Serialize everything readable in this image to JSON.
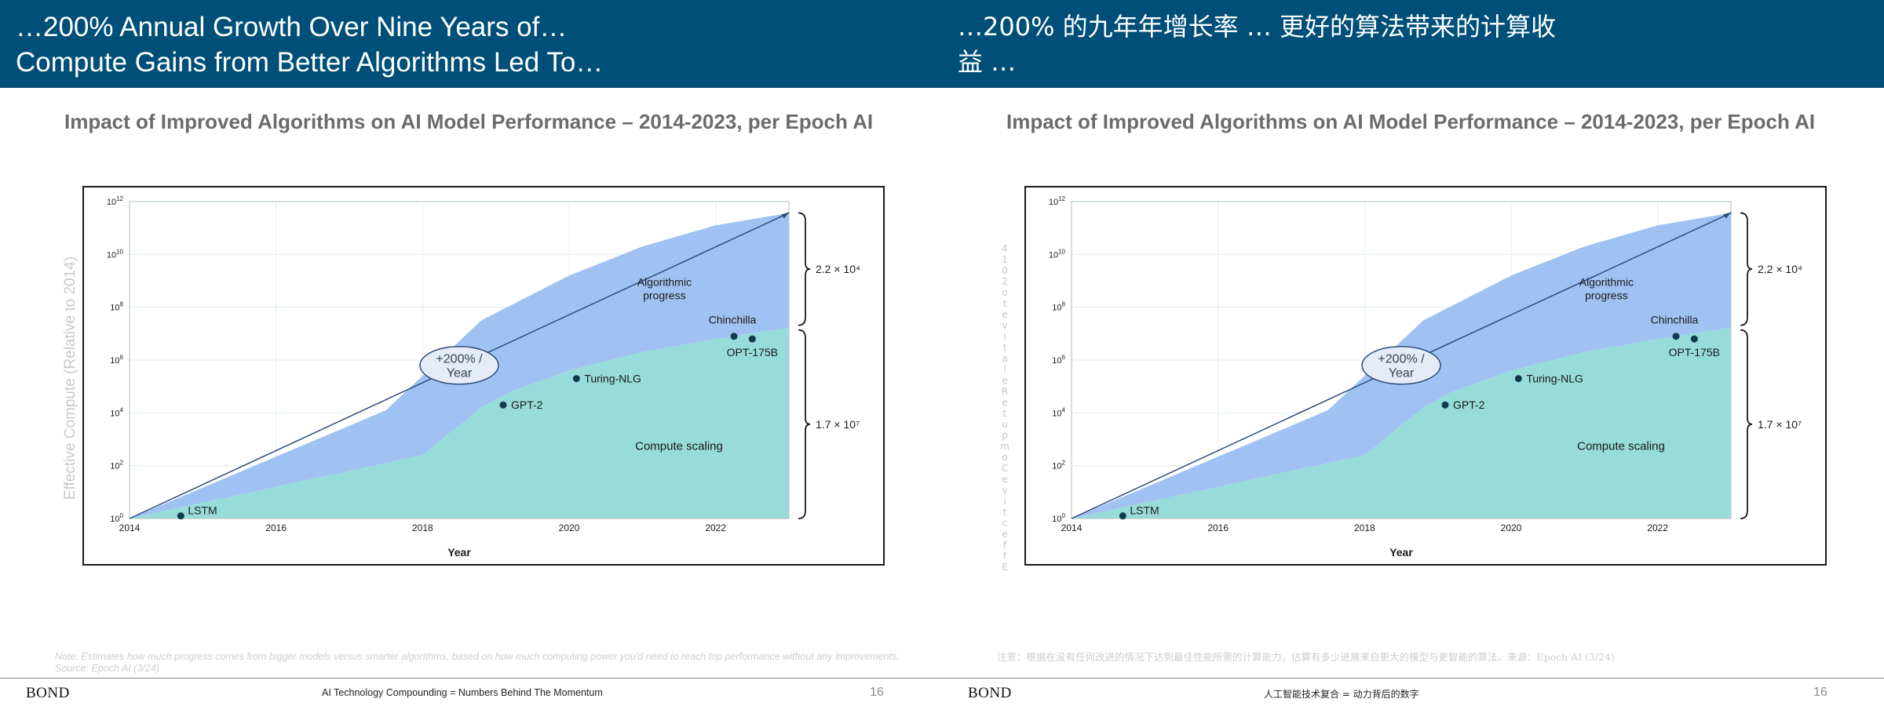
{
  "header": {
    "title_en_line1": "…200% Annual Growth Over Nine Years of…",
    "title_en_line2": "Compute Gains from Better Algorithms Led To…",
    "title_cn_line1": "…200% 的九年年增长率 … 更好的算法带来的计算收",
    "title_cn_line2": "益 …",
    "color": "#004f78"
  },
  "chart_heading_en": "Impact of Improved Algorithms on AI Model Performance – 2014-2023, per Epoch AI",
  "chart_heading_cn": "Impact of Improved Algorithms on AI Model Performance – 2014-2023, per Epoch AI",
  "ylabel_en": "Effective Compute (Relative to 2014)",
  "ylabel_cn_chars": [
    "4",
    "1",
    "0",
    "2",
    "o",
    "t",
    "e",
    "v",
    "i",
    "t",
    "a",
    "l",
    "e",
    "R",
    "e",
    "t",
    "u",
    "p",
    "m",
    "o",
    "C",
    "e",
    "v",
    "i",
    "t",
    "c",
    "e",
    "f",
    "f",
    "E"
  ],
  "note_en": "Note: Estimates how much progress comes from bigger models versus smarter algorithms, based on how much computing power you'd need to reach top performance without any improvements. Source: Epoch AI (3/24)",
  "note_cn": "注意：根据在没有任何改进的情况下达到最佳性能所需的计算能力，估算有多少进展来自更大的模型与更智能的算法。来源：Epoch AI (3/24)",
  "footer": {
    "brand": "BOND",
    "tagline_en": "AI Technology Compounding = Numbers Behind The Momentum",
    "tagline_cn": "人工智能技术复合 = 动力背后的数字",
    "page": "16"
  },
  "chart_data": {
    "type": "area",
    "xlabel": "Year",
    "ylabel": "Effective Compute (Relative to 2014)",
    "log_scale_y": true,
    "xlim": [
      2014,
      2023
    ],
    "ylim_exponent": [
      0,
      12
    ],
    "x_ticks": [
      "2014",
      "2016",
      "2018",
      "2020",
      "2022"
    ],
    "y_ticks_exponent": [
      0,
      2,
      4,
      6,
      8,
      10,
      12
    ],
    "y_tick_base": "10",
    "grid": true,
    "series": [
      {
        "name": "Compute scaling",
        "color": "#97dcd9",
        "points": [
          [
            2014.0,
            0
          ],
          [
            2018.0,
            2.4
          ],
          [
            2018.8,
            4.2
          ],
          [
            2019.2,
            4.8
          ],
          [
            2020.0,
            5.6
          ],
          [
            2021.0,
            6.3
          ],
          [
            2022.0,
            6.8
          ],
          [
            2023.0,
            7.23
          ]
        ]
      },
      {
        "name": "Algorithmic progress",
        "color": "#a0c2f2",
        "points": [
          [
            2014.0,
            0
          ],
          [
            2017.5,
            4.1
          ],
          [
            2018.8,
            7.5
          ],
          [
            2020.0,
            9.2
          ],
          [
            2021.0,
            10.3
          ],
          [
            2022.0,
            11.1
          ],
          [
            2023.0,
            11.57
          ]
        ]
      }
    ],
    "trend_line": {
      "from": [
        2014.0,
        0
      ],
      "to": [
        2023.0,
        11.57
      ],
      "label": "+200% / Year",
      "label_line1": "+200% /",
      "label_line2": "Year"
    },
    "models": [
      {
        "name": "LSTM",
        "x": 2014.7,
        "y_exp": 0.1
      },
      {
        "name": "GPT-2",
        "x": 2019.1,
        "y_exp": 4.3
      },
      {
        "name": "Turing-NLG",
        "x": 2020.1,
        "y_exp": 5.3
      },
      {
        "name": "Chinchilla",
        "x": 2022.25,
        "y_exp": 6.9
      },
      {
        "name": "OPT-175B",
        "x": 2022.5,
        "y_exp": 6.8
      }
    ],
    "annotations": {
      "algorithmic_label_line1": "Algorithmic",
      "algorithmic_label_line2": "progress",
      "compute_label": "Compute scaling",
      "bracket_top": "2.2 × 10⁴",
      "bracket_bottom": "1.7 × 10⁷"
    },
    "colors": {
      "line": "#2e4c7a",
      "dot": "#0e3c4e",
      "ellipse_fill": "#e5ecf7"
    }
  }
}
